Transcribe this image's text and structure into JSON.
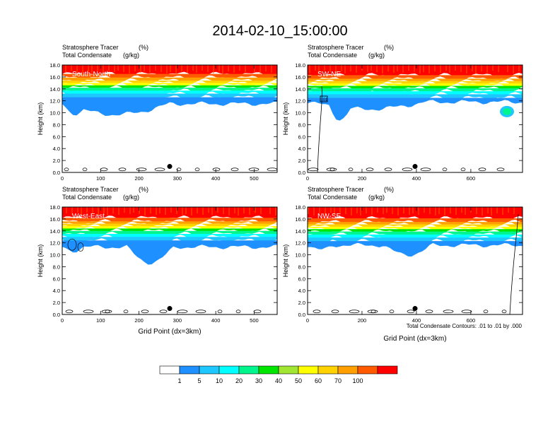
{
  "title": "2014-02-10_15:00:00",
  "contour_note": "Total Condensate Contours: .01 to .01 by .000",
  "colorbar": {
    "colors": [
      "#ffffff",
      "#1e90ff",
      "#1ec8ff",
      "#00ffff",
      "#00f58c",
      "#00e600",
      "#a0e632",
      "#ffff00",
      "#ffd200",
      "#ffa000",
      "#ff5a00",
      "#ff0000"
    ],
    "labels": [
      "1",
      "5",
      "10",
      "20",
      "30",
      "40",
      "50",
      "60",
      "70",
      "100"
    ]
  },
  "chart_data": [
    {
      "type": "heatmap",
      "panel_label": "South-North",
      "variable_left": "Stratosphere Tracer",
      "variable_right": "(%)",
      "contour_left": "Total Condensate",
      "contour_right": "(g/kg)",
      "ylabel": "Height (km)",
      "xlabel": "",
      "xlim": [
        0,
        560
      ],
      "ylim": [
        0,
        18
      ],
      "xticks": [
        "0",
        "100",
        "200",
        "300",
        "400",
        "500"
      ],
      "yticks": [
        "0.0",
        "2.0",
        "4.0",
        "6.0",
        "8.0",
        "10.0",
        "12.0",
        "14.0",
        "16.0",
        "18.0"
      ],
      "marker_x": 280
    },
    {
      "type": "heatmap",
      "panel_label": "SW-NE",
      "variable_left": "Stratosphere Tracer",
      "variable_right": "(%)",
      "contour_left": "Total Condensate",
      "contour_right": "(g/kg)",
      "ylabel": "Height (km)",
      "xlabel": "",
      "xlim": [
        0,
        790
      ],
      "ylim": [
        0,
        18
      ],
      "xticks": [
        "0",
        "200",
        "400",
        "600"
      ],
      "yticks": [
        "0.0",
        "2.0",
        "4.0",
        "6.0",
        "8.0",
        "10.0",
        "12.0",
        "14.0",
        "16.0",
        "18.0"
      ],
      "marker_x": 395,
      "contour_box_label": ".01"
    },
    {
      "type": "heatmap",
      "panel_label": "West-East",
      "variable_left": "Stratosphere Tracer",
      "variable_right": "(%)",
      "contour_left": "Total Condensate",
      "contour_right": "(g/kg)",
      "ylabel": "Height (km)",
      "xlabel": "Grid Point (dx=3km)",
      "xlim": [
        0,
        560
      ],
      "ylim": [
        0,
        18
      ],
      "xticks": [
        "0",
        "100",
        "200",
        "300",
        "400",
        "500"
      ],
      "yticks": [
        "0.0",
        "2.0",
        "4.0",
        "6.0",
        "8.0",
        "10.0",
        "12.0",
        "14.0",
        "16.0",
        "18.0"
      ],
      "marker_x": 280
    },
    {
      "type": "heatmap",
      "panel_label": "NW-SE",
      "variable_left": "Stratosphere Tracer",
      "variable_right": "(%)",
      "contour_left": "Total Condensate",
      "contour_right": "(g/kg)",
      "ylabel": "Height (km)",
      "xlabel": "Grid Point (dx=3km)",
      "xlim": [
        0,
        790
      ],
      "ylim": [
        0,
        18
      ],
      "xticks": [
        "0",
        "200",
        "400",
        "600"
      ],
      "yticks": [
        "0.0",
        "2.0",
        "4.0",
        "6.0",
        "8.0",
        "10.0",
        "12.0",
        "14.0",
        "16.0",
        "18.0"
      ],
      "marker_x": 395
    }
  ]
}
